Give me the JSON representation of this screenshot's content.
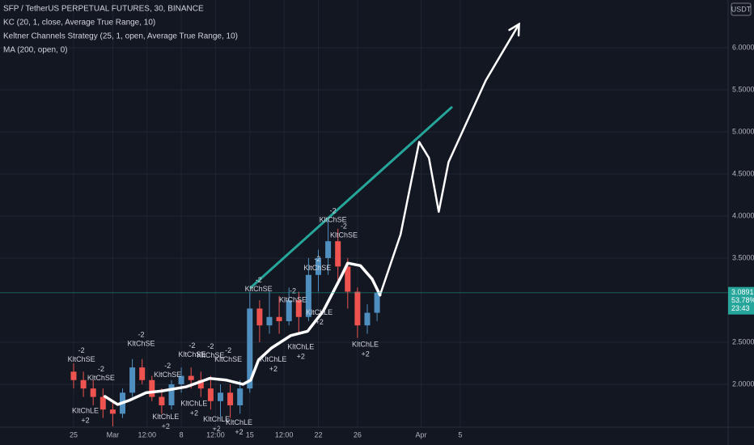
{
  "chart_data": {
    "type": "candlestick",
    "title": "SFP / TetherUS PERPETUAL FUTURES, 30, BINANCE",
    "indicators": [
      "KC (20, 1, close, Average True Range, 10)",
      "Keltner Channels Strategy (25, 1, open, Average True Range, 10)",
      "MA (200, open, 0)"
    ],
    "currency": "USDT",
    "last_price": 3.0891,
    "badges": [
      "53.78%",
      "23:43"
    ],
    "up_color": "#4f8fc0",
    "down_color": "#ef5350",
    "grid": true,
    "xlim": [
      -7.52,
      66.86
    ],
    "ylim": [
      1.49,
      6.567
    ],
    "xticks": [
      {
        "value": 0,
        "label": "25"
      },
      {
        "value": 4,
        "label": "Mar"
      },
      {
        "value": 7.5,
        "label": "12:00"
      },
      {
        "value": 11,
        "label": "8"
      },
      {
        "value": 14.5,
        "label": "12:00"
      },
      {
        "value": 18,
        "label": "15"
      },
      {
        "value": 21.5,
        "label": "12:00"
      },
      {
        "value": 25,
        "label": "22"
      },
      {
        "value": 29,
        "label": "26"
      },
      {
        "value": 35.5,
        "label": "Apr"
      },
      {
        "value": 39.5,
        "label": "5"
      }
    ],
    "yticks": [
      {
        "value": 2,
        "label": "2.0000"
      },
      {
        "value": 2.5,
        "label": "2.5000"
      },
      {
        "value": 3.5,
        "label": "3.5000"
      },
      {
        "value": 4,
        "label": "4.0000"
      },
      {
        "value": 4.5,
        "label": "4.5000"
      },
      {
        "value": 5,
        "label": "5.0000"
      },
      {
        "value": 5.5,
        "label": "5.5000"
      },
      {
        "value": 6,
        "label": "6.0000"
      }
    ],
    "x": [
      0,
      1,
      2,
      3,
      4,
      5,
      6,
      7,
      8,
      9,
      10,
      11,
      12,
      13,
      14,
      15,
      16,
      17,
      18,
      19,
      20,
      21,
      22,
      23,
      24,
      25,
      26,
      27,
      28,
      29,
      30,
      31
    ],
    "open": [
      2.15,
      2.05,
      1.95,
      1.85,
      1.7,
      1.65,
      1.9,
      2.2,
      2.05,
      1.85,
      1.75,
      2.0,
      2.1,
      2.05,
      1.95,
      1.8,
      1.9,
      1.75,
      1.95,
      2.9,
      2.7,
      2.8,
      2.75,
      3.0,
      2.8,
      3.3,
      3.5,
      3.7,
      3.4,
      3.1,
      2.7,
      2.85
    ],
    "high": [
      2.25,
      2.15,
      2.05,
      1.95,
      1.8,
      1.95,
      2.3,
      2.3,
      2.1,
      1.95,
      2.05,
      2.2,
      2.2,
      2.15,
      2.1,
      2.0,
      2.0,
      2.05,
      3.1,
      3.0,
      3.1,
      3.05,
      3.15,
      3.1,
      3.5,
      3.6,
      3.95,
      3.85,
      3.5,
      3.15,
      2.95,
      3.1
    ],
    "low": [
      1.95,
      1.85,
      1.75,
      1.6,
      1.5,
      1.6,
      1.85,
      2.0,
      1.8,
      1.65,
      1.7,
      1.9,
      1.95,
      1.85,
      1.7,
      1.6,
      1.6,
      1.65,
      1.9,
      2.5,
      2.6,
      2.6,
      2.7,
      2.6,
      2.75,
      3.1,
      3.3,
      3.2,
      2.9,
      2.55,
      2.6,
      2.75
    ],
    "close": [
      2.05,
      1.95,
      1.85,
      1.7,
      1.65,
      1.9,
      2.2,
      2.05,
      1.85,
      1.75,
      2.0,
      2.1,
      2.05,
      1.95,
      1.8,
      1.9,
      1.75,
      1.95,
      2.9,
      2.7,
      2.8,
      2.75,
      3.0,
      2.8,
      3.3,
      3.5,
      3.7,
      3.4,
      3.1,
      2.7,
      2.85,
      3.0891
    ],
    "ma": {
      "color": "#ffffff",
      "x": [
        3.2,
        4.5,
        5.7,
        7.4,
        9.0,
        11.5,
        13.9,
        15.6,
        17.3,
        18.1,
        18.9,
        20.2,
        22.2,
        23.9,
        25.5,
        27.2,
        28.0,
        29.3,
        30.5,
        31.3
      ],
      "values": [
        1.856,
        1.76,
        1.81,
        1.9,
        1.92,
        1.97,
        2.07,
        2.05,
        2.0,
        2.05,
        2.29,
        2.43,
        2.58,
        2.63,
        2.87,
        3.25,
        3.44,
        3.41,
        3.25,
        3.06
      ]
    },
    "trend_line": {
      "color": "#26a69a",
      "x": [
        18.1,
        38.6
      ],
      "values": [
        3.15,
        5.29
      ]
    },
    "projection": {
      "color": "#ffffff",
      "x": [
        31.3,
        33.4,
        35.3,
        36.3,
        37.3,
        38.3,
        42.1,
        45.5
      ],
      "values": [
        3.06,
        3.78,
        4.88,
        4.69,
        4.05,
        4.64,
        5.61,
        6.28
      ]
    },
    "signals": [
      {
        "label": "KltChSE",
        "qty": "-2",
        "x": 0.8,
        "y": 2.29
      },
      {
        "label": "KltChSE",
        "qty": "-2",
        "x": 2.8,
        "y": 2.07
      },
      {
        "label": "KltChSE",
        "qty": "-2",
        "x": 6.9,
        "y": 2.48
      },
      {
        "label": "KltChSE",
        "qty": "-2",
        "x": 9.6,
        "y": 2.11
      },
      {
        "label": "KltChSE",
        "qty": "-2",
        "x": 12.1,
        "y": 2.35
      },
      {
        "label": "KltChSE",
        "qty": "-2",
        "x": 14.0,
        "y": 2.34
      },
      {
        "label": "KltChSE",
        "qty": "-2",
        "x": 15.8,
        "y": 2.29
      },
      {
        "label": "KltChSE",
        "qty": "-2",
        "x": 18.9,
        "y": 3.13
      },
      {
        "label": "KltChSE",
        "qty": "-2",
        "x": 22.4,
        "y": 3.0
      },
      {
        "label": "KltChSE",
        "qty": "-2",
        "x": 24.9,
        "y": 3.38
      },
      {
        "label": "KltChSE",
        "qty": "-2",
        "x": 26.5,
        "y": 3.95
      },
      {
        "label": "KltChSE",
        "qty": "-2",
        "x": 27.6,
        "y": 3.77
      },
      {
        "label": "KltChLE",
        "qty": "+2",
        "x": 1.2,
        "y": 1.68
      },
      {
        "label": "KltChLE",
        "qty": "+2",
        "x": 9.4,
        "y": 1.61
      },
      {
        "label": "KltChLE",
        "qty": "+2",
        "x": 12.3,
        "y": 1.77
      },
      {
        "label": "KltChLE",
        "qty": "+2",
        "x": 14.6,
        "y": 1.58
      },
      {
        "label": "KltChLE",
        "qty": "+2",
        "x": 16.9,
        "y": 1.54
      },
      {
        "label": "KltChLE",
        "qty": "+2",
        "x": 20.4,
        "y": 2.29
      },
      {
        "label": "KltChLE",
        "qty": "+2",
        "x": 23.2,
        "y": 2.44
      },
      {
        "label": "KltChLE",
        "qty": "+2",
        "x": 25.1,
        "y": 2.85
      },
      {
        "label": "KltChLE",
        "qty": "+2",
        "x": 29.8,
        "y": 2.47
      }
    ]
  }
}
